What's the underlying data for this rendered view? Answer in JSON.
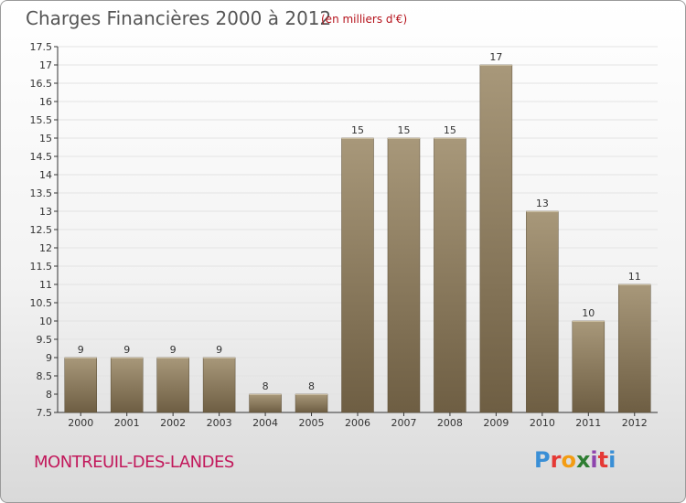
{
  "header": {
    "title": "Charges Financières 2000 à 2012",
    "unit": "(en milliers d'€)"
  },
  "footer": {
    "place": "MONTREUIL-DES-LANDES",
    "logo_letters": [
      "P",
      "r",
      "o",
      "x",
      "i",
      "t",
      "i"
    ],
    "logo_colors": [
      "#3a8fd6",
      "#e53935",
      "#f39c12",
      "#2e7d32",
      "#8e44ad",
      "#e53935",
      "#3a8fd6"
    ]
  },
  "colors": {
    "bar_top": "#a8987a",
    "bar_bottom": "#6e5e43",
    "bar_edge": "#5a4d36",
    "grid": "#e3e3e3"
  },
  "chart_data": {
    "type": "bar",
    "title": "Charges Financières 2000 à 2012",
    "categories": [
      "2000",
      "2001",
      "2002",
      "2003",
      "2004",
      "2005",
      "2006",
      "2007",
      "2008",
      "2009",
      "2010",
      "2011",
      "2012"
    ],
    "values": [
      9,
      9,
      9,
      9,
      8,
      8,
      15,
      15,
      15,
      17,
      13,
      10,
      11
    ],
    "data_labels": [
      "9",
      "9",
      "9",
      "9",
      "8",
      "8",
      "15",
      "15",
      "15",
      "17",
      "13",
      "10",
      "11"
    ],
    "ylim": [
      7.5,
      17.5
    ],
    "yticks": [
      "7.5",
      "8",
      "8.5",
      "9",
      "9.5",
      "10",
      "10.5",
      "11",
      "11.5",
      "12",
      "12.5",
      "13",
      "13.5",
      "14",
      "14.5",
      "15",
      "15.5",
      "16",
      "16.5",
      "17",
      "17.5"
    ],
    "grid": true,
    "xlabel": "",
    "ylabel": ""
  }
}
